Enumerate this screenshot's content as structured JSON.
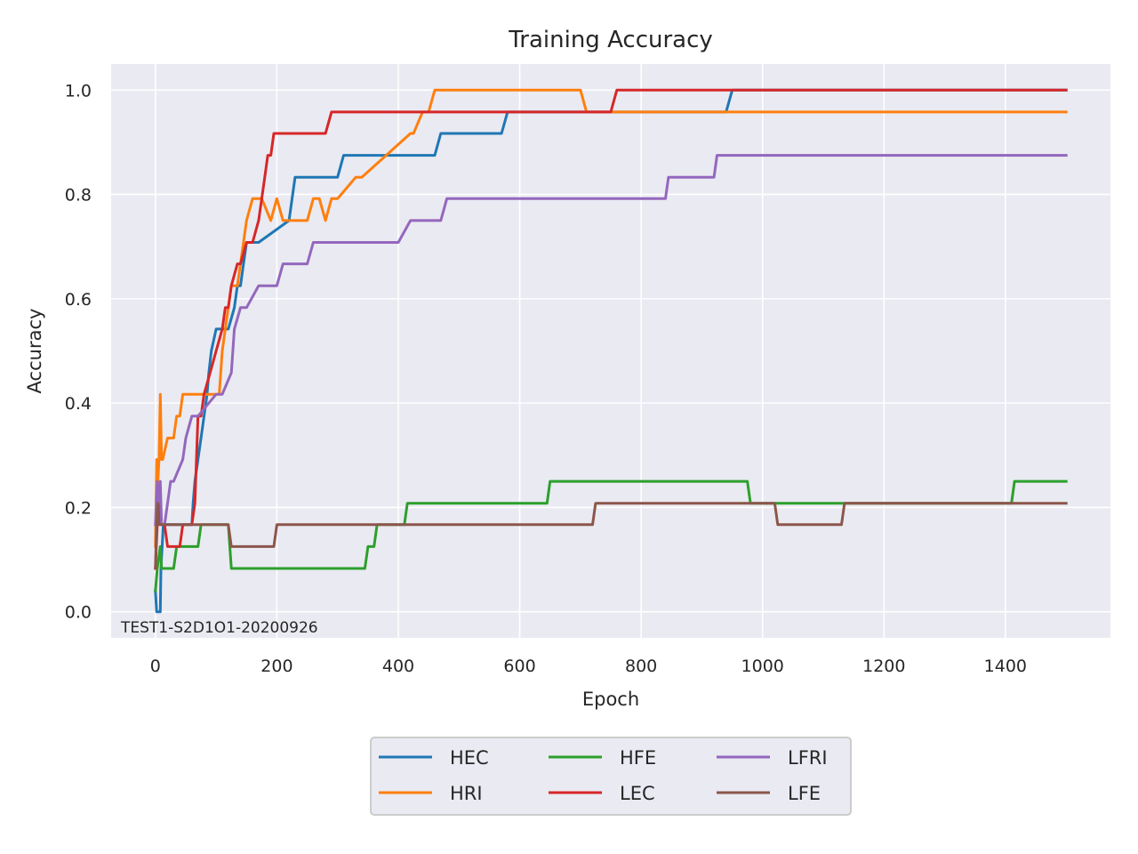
{
  "chart_data": {
    "type": "line",
    "title": "Training Accuracy",
    "xlabel": "Epoch",
    "ylabel": "Accuracy",
    "xlim": [
      -73,
      1573
    ],
    "ylim": [
      -0.05,
      1.05
    ],
    "xticks": [
      0,
      200,
      400,
      600,
      800,
      1000,
      1200,
      1400
    ],
    "yticks": [
      0.0,
      0.2,
      0.4,
      0.6,
      0.8,
      1.0
    ],
    "grid": true,
    "legend_position": "below-center",
    "legend_columns": 3,
    "annotation": "TEST1-S2D1O1-20200926",
    "series": [
      {
        "name": "HEC",
        "color": "#1f77b4",
        "x": [
          0,
          2,
          4,
          6,
          8,
          9,
          11,
          13,
          20,
          30,
          50,
          60,
          62,
          65,
          70,
          75,
          80,
          85,
          88,
          92,
          100,
          120,
          130,
          135,
          140,
          145,
          150,
          170,
          220,
          230,
          300,
          310,
          460,
          470,
          570,
          580,
          940,
          950,
          1500
        ],
        "y": [
          0.04,
          0.0,
          0.0,
          0.0,
          0.0,
          0.083,
          0.125,
          0.167,
          0.167,
          0.167,
          0.167,
          0.167,
          0.208,
          0.25,
          0.292,
          0.333,
          0.375,
          0.417,
          0.458,
          0.5,
          0.542,
          0.542,
          0.583,
          0.625,
          0.625,
          0.667,
          0.708,
          0.708,
          0.75,
          0.833,
          0.833,
          0.875,
          0.875,
          0.917,
          0.917,
          0.958,
          0.958,
          1.0,
          1.0
        ]
      },
      {
        "name": "HRI",
        "color": "#ff7f0e",
        "x": [
          0,
          2,
          4,
          6,
          8,
          10,
          12,
          20,
          30,
          35,
          40,
          45,
          100,
          105,
          110,
          115,
          120,
          125,
          135,
          140,
          145,
          150,
          160,
          175,
          190,
          200,
          210,
          250,
          260,
          270,
          280,
          290,
          300,
          330,
          340,
          420,
          425,
          440,
          450,
          460,
          700,
          710,
          1500
        ],
        "y": [
          0.125,
          0.292,
          0.25,
          0.292,
          0.417,
          0.292,
          0.292,
          0.333,
          0.333,
          0.375,
          0.375,
          0.417,
          0.417,
          0.417,
          0.5,
          0.542,
          0.583,
          0.625,
          0.625,
          0.667,
          0.708,
          0.75,
          0.792,
          0.792,
          0.75,
          0.792,
          0.75,
          0.75,
          0.792,
          0.792,
          0.75,
          0.792,
          0.792,
          0.833,
          0.833,
          0.917,
          0.917,
          0.958,
          0.958,
          1.0,
          1.0,
          0.958,
          0.958
        ]
      },
      {
        "name": "HFE",
        "color": "#2ca02c",
        "x": [
          0,
          3,
          8,
          10,
          30,
          35,
          70,
          75,
          120,
          125,
          200,
          205,
          345,
          350,
          360,
          365,
          410,
          415,
          645,
          650,
          975,
          980,
          1410,
          1415,
          1500
        ],
        "y": [
          0.04,
          0.083,
          0.125,
          0.083,
          0.083,
          0.125,
          0.125,
          0.167,
          0.167,
          0.083,
          0.083,
          0.083,
          0.083,
          0.125,
          0.125,
          0.167,
          0.167,
          0.208,
          0.208,
          0.25,
          0.25,
          0.208,
          0.208,
          0.25,
          0.25
        ]
      },
      {
        "name": "LEC",
        "color": "#d62728",
        "x": [
          0,
          3,
          6,
          9,
          12,
          15,
          20,
          40,
          45,
          60,
          65,
          70,
          75,
          80,
          90,
          100,
          110,
          115,
          120,
          125,
          135,
          140,
          150,
          160,
          170,
          175,
          180,
          185,
          190,
          195,
          200,
          280,
          290,
          300,
          750,
          760,
          1500
        ],
        "y": [
          0.083,
          0.167,
          0.208,
          0.167,
          0.167,
          0.167,
          0.125,
          0.125,
          0.167,
          0.167,
          0.208,
          0.375,
          0.375,
          0.417,
          0.458,
          0.5,
          0.542,
          0.583,
          0.583,
          0.625,
          0.667,
          0.667,
          0.708,
          0.708,
          0.75,
          0.792,
          0.833,
          0.875,
          0.875,
          0.917,
          0.917,
          0.917,
          0.958,
          0.958,
          0.958,
          1.0,
          1.0
        ]
      },
      {
        "name": "LFRI",
        "color": "#9467bd",
        "x": [
          0,
          3,
          5,
          8,
          10,
          15,
          20,
          25,
          30,
          45,
          50,
          60,
          70,
          100,
          110,
          125,
          130,
          140,
          150,
          170,
          200,
          210,
          250,
          260,
          400,
          420,
          470,
          480,
          840,
          845,
          920,
          925,
          1500
        ],
        "y": [
          0.167,
          0.25,
          0.208,
          0.25,
          0.167,
          0.167,
          0.208,
          0.25,
          0.25,
          0.292,
          0.333,
          0.375,
          0.375,
          0.417,
          0.417,
          0.458,
          0.542,
          0.583,
          0.583,
          0.625,
          0.625,
          0.667,
          0.667,
          0.708,
          0.708,
          0.75,
          0.75,
          0.792,
          0.792,
          0.833,
          0.833,
          0.875,
          0.875
        ]
      },
      {
        "name": "LFE",
        "color": "#8c564b",
        "x": [
          0,
          2,
          4,
          6,
          8,
          120,
          125,
          195,
          200,
          720,
          725,
          1020,
          1025,
          1130,
          1135,
          1500
        ],
        "y": [
          0.083,
          0.167,
          0.208,
          0.167,
          0.167,
          0.167,
          0.125,
          0.125,
          0.167,
          0.167,
          0.208,
          0.208,
          0.167,
          0.167,
          0.208,
          0.208
        ]
      }
    ]
  }
}
